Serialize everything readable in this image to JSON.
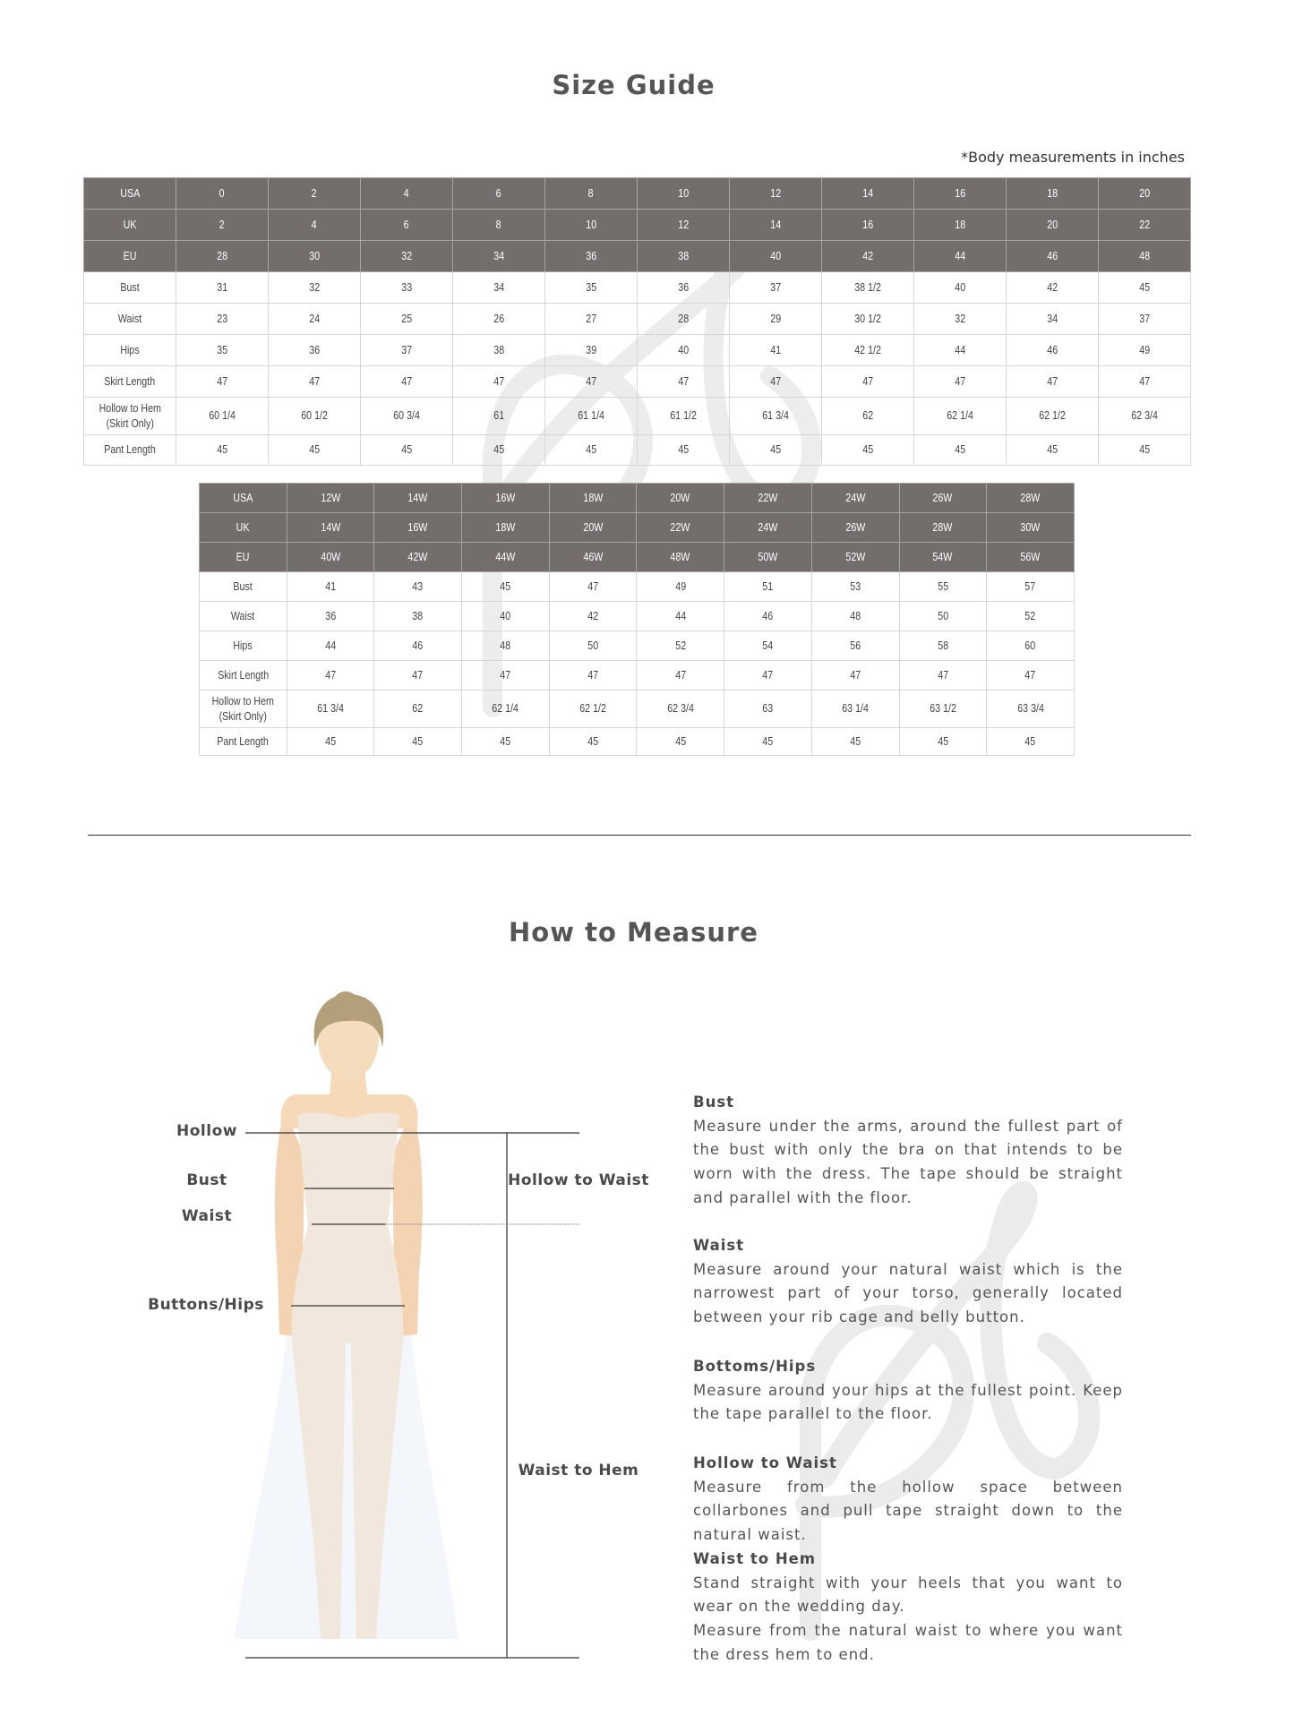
{
  "title": "Size Guide",
  "note": "*Body measurements in inches",
  "table_standard": {
    "header_rows": [
      {
        "label": "USA",
        "values": [
          "0",
          "2",
          "4",
          "6",
          "8",
          "10",
          "12",
          "14",
          "16",
          "18",
          "20"
        ]
      },
      {
        "label": "UK",
        "values": [
          "2",
          "4",
          "6",
          "8",
          "10",
          "12",
          "14",
          "16",
          "18",
          "20",
          "22"
        ]
      },
      {
        "label": "EU",
        "values": [
          "28",
          "30",
          "32",
          "34",
          "36",
          "38",
          "40",
          "42",
          "44",
          "46",
          "48"
        ]
      }
    ],
    "rows": [
      {
        "label": "Bust",
        "values": [
          "31",
          "32",
          "33",
          "34",
          "35",
          "36",
          "37",
          "38 1/2",
          "40",
          "42",
          "45"
        ]
      },
      {
        "label": "Waist",
        "values": [
          "23",
          "24",
          "25",
          "26",
          "27",
          "28",
          "29",
          "30 1/2",
          "32",
          "34",
          "37"
        ]
      },
      {
        "label": "Hips",
        "values": [
          "35",
          "36",
          "37",
          "38",
          "39",
          "40",
          "41",
          "42 1/2",
          "44",
          "46",
          "49"
        ]
      },
      {
        "label": "Skirt Length",
        "values": [
          "47",
          "47",
          "47",
          "47",
          "47",
          "47",
          "47",
          "47",
          "47",
          "47",
          "47"
        ]
      },
      {
        "label": "Hollow to Hem\n(Skirt Only)",
        "values": [
          "60 1/4",
          "60 1/2",
          "60 3/4",
          "61",
          "61 1/4",
          "61 1/2",
          "61 3/4",
          "62",
          "62 1/4",
          "62 1/2",
          "62 3/4"
        ]
      },
      {
        "label": "Pant Length",
        "values": [
          "45",
          "45",
          "45",
          "45",
          "45",
          "45",
          "45",
          "45",
          "45",
          "45",
          "45"
        ]
      }
    ]
  },
  "table_plus": {
    "header_rows": [
      {
        "label": "USA",
        "values": [
          "12W",
          "14W",
          "16W",
          "18W",
          "20W",
          "22W",
          "24W",
          "26W",
          "28W"
        ]
      },
      {
        "label": "UK",
        "values": [
          "14W",
          "16W",
          "18W",
          "20W",
          "22W",
          "24W",
          "26W",
          "28W",
          "30W"
        ]
      },
      {
        "label": "EU",
        "values": [
          "40W",
          "42W",
          "44W",
          "46W",
          "48W",
          "50W",
          "52W",
          "54W",
          "56W"
        ]
      }
    ],
    "rows": [
      {
        "label": "Bust",
        "values": [
          "41",
          "43",
          "45",
          "47",
          "49",
          "51",
          "53",
          "55",
          "57"
        ]
      },
      {
        "label": "Waist",
        "values": [
          "36",
          "38",
          "40",
          "42",
          "44",
          "46",
          "48",
          "50",
          "52"
        ]
      },
      {
        "label": "Hips",
        "values": [
          "44",
          "46",
          "48",
          "50",
          "52",
          "54",
          "56",
          "58",
          "60"
        ]
      },
      {
        "label": "Skirt Length",
        "values": [
          "47",
          "47",
          "47",
          "47",
          "47",
          "47",
          "47",
          "47",
          "47"
        ]
      },
      {
        "label": "Hollow to Hem\n(Skirt Only)",
        "values": [
          "61 3/4",
          "62",
          "62 1/4",
          "62 1/2",
          "62 3/4",
          "63",
          "63 1/4",
          "63 1/2",
          "63 3/4"
        ]
      },
      {
        "label": "Pant Length",
        "values": [
          "45",
          "45",
          "45",
          "45",
          "45",
          "45",
          "45",
          "45",
          "45"
        ]
      }
    ]
  },
  "how_to_measure": {
    "title": "How to Measure",
    "figure_labels": {
      "hollow": "Hollow",
      "bust": "Bust",
      "waist": "Waist",
      "hips": "Buttons/Hips",
      "hollow_to_waist": "Hollow to Waist",
      "waist_to_hem": "Waist to Hem"
    },
    "sections": [
      {
        "heading": "Bust",
        "text": [
          "Measure  under the arms, around the fullest part of the bust with only the bra on that intends to be worn with the dress. The tape should be straight and parallel with the floor."
        ]
      },
      {
        "heading": "Waist",
        "text": [
          "Measure around your natural waist which is the narrowest part of your torso, generally located between your rib cage and belly button."
        ]
      },
      {
        "heading": "Bottoms/Hips",
        "text": [
          "Measure around your hips at the fullest point. Keep the tape parallel to the floor."
        ]
      },
      {
        "heading": "Hollow to Waist",
        "text": [
          "Measure from the hollow space between collarbones and pull tape straight down to the natural waist."
        ]
      },
      {
        "heading": "Waist to Hem",
        "text": [
          "Stand straight with your heels that you want to wear on the wedding day.",
          "Measure from the natural waist to where you want the dress hem to end."
        ]
      }
    ]
  },
  "colors": {
    "header_bg": "#736e6c",
    "grid": "#d6d6d6",
    "watermark": "#e6e6e6",
    "skin": "#f5dcbd",
    "hair": "#b3a07a",
    "garment": "#f1e7dc"
  }
}
